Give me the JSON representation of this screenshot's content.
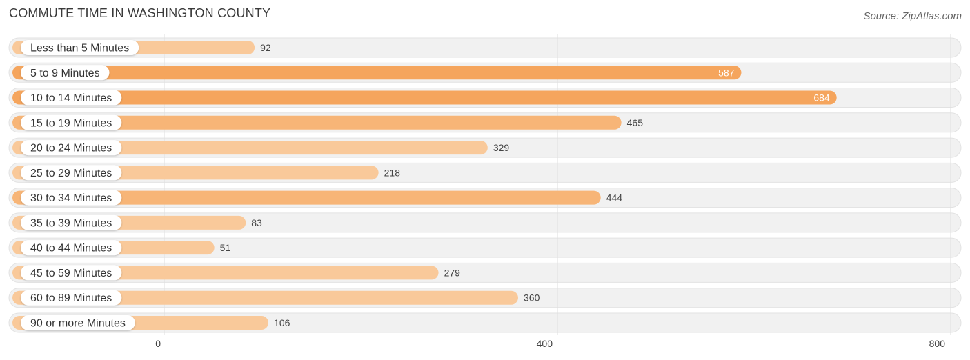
{
  "header": {
    "title": "COMMUTE TIME IN WASHINGTON COUNTY",
    "source": "Source: ZipAtlas.com"
  },
  "colors": {
    "bar_light": "#f9c99a",
    "bar_dark": "#f5a55d",
    "row_background": "#f1f1f1",
    "grid": "#dedede"
  },
  "chart_data": {
    "type": "bar",
    "orientation": "horizontal",
    "categories": [
      "Less than 5 Minutes",
      "5 to 9 Minutes",
      "10 to 14 Minutes",
      "15 to 19 Minutes",
      "20 to 24 Minutes",
      "25 to 29 Minutes",
      "30 to 34 Minutes",
      "35 to 39 Minutes",
      "40 to 44 Minutes",
      "45 to 59 Minutes",
      "60 to 89 Minutes",
      "90 or more Minutes"
    ],
    "values": [
      92,
      587,
      684,
      465,
      329,
      218,
      444,
      83,
      51,
      279,
      360,
      106
    ],
    "xlim": [
      0,
      800
    ],
    "ticks": [
      0,
      400,
      800
    ],
    "tick_labels": [
      "0",
      "400",
      "800"
    ],
    "grid": true,
    "title": "COMMUTE TIME IN WASHINGTON COUNTY"
  }
}
